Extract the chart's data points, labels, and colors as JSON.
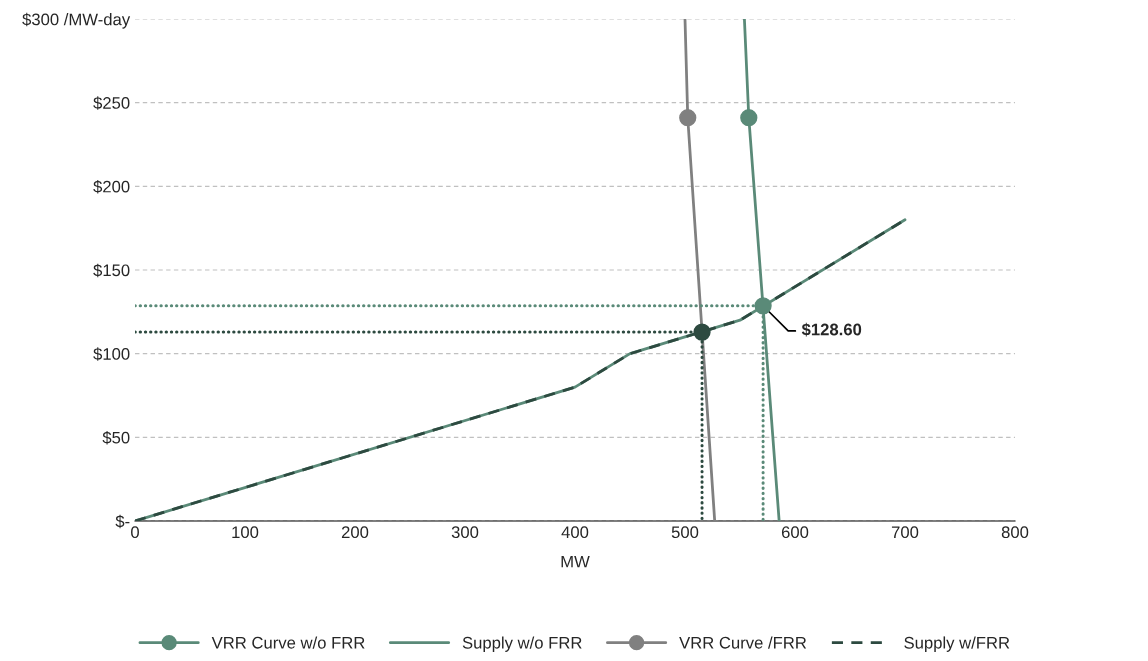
{
  "chart_data": {
    "type": "line",
    "xlabel": "MW",
    "xlim": [
      0,
      800
    ],
    "xticks": [
      0,
      100,
      200,
      300,
      400,
      500,
      600,
      700,
      800
    ],
    "ylim": [
      0,
      300
    ],
    "yticks": [
      {
        "value": 0,
        "label": "$-"
      },
      {
        "value": 50,
        "label": "$50"
      },
      {
        "value": 100,
        "label": "$100"
      },
      {
        "value": 150,
        "label": "$150"
      },
      {
        "value": 200,
        "label": "$200"
      },
      {
        "value": 250,
        "label": "$250"
      },
      {
        "value": 300,
        "label": "$300 /MW-day"
      }
    ],
    "grid": "y",
    "legend": "bottom",
    "series": [
      {
        "color": "#5a8a78",
        "x": [
          554,
          558,
          585.6
        ],
        "values": [
          300,
          241,
          0
        ],
        "marker": "none",
        "line_style": "solid"
      },
      {
        "type": "scatter",
        "name": "VRR Curve w/o FRR",
        "color": "#5a8a78",
        "x": [
          558
        ],
        "values": [
          241
        ],
        "marker": "circle"
      },
      {
        "name": "Supply w/o FRR",
        "color": "#5a8a78",
        "x": [
          0,
          400,
          450,
          550,
          700
        ],
        "values": [
          0,
          80,
          100,
          120,
          180
        ],
        "marker": "none",
        "line_style": "solid"
      },
      {
        "color": "#808080",
        "x": [
          500,
          502.5,
          527
        ],
        "values": [
          300,
          241,
          0
        ],
        "marker": "none",
        "line_style": "solid"
      },
      {
        "type": "scatter",
        "name": "VRR Curve /FRR",
        "color": "#808080",
        "x": [
          502.5
        ],
        "values": [
          241
        ],
        "marker": "circle"
      },
      {
        "name": "Supply w/FRR",
        "color": "#2d4a40",
        "x": [
          0,
          400,
          450,
          550,
          700
        ],
        "values": [
          0,
          80,
          100,
          120,
          180
        ],
        "marker": "none",
        "line_style": "dashed"
      },
      {
        "color": "#5a8a78",
        "x": [
          0,
          571,
          571
        ],
        "values": [
          128.6,
          128.6,
          0
        ],
        "marker": "none",
        "line_style": "dotted"
      },
      {
        "color": "#2d4a40",
        "x": [
          0,
          515.5,
          515.5
        ],
        "values": [
          112.9,
          112.9,
          0
        ],
        "marker": "none",
        "line_style": "dotted"
      },
      {
        "type": "scatter",
        "color": "#5a8a78",
        "x": [
          571
        ],
        "values": [
          128.6
        ],
        "marker": "circle"
      },
      {
        "type": "scatter",
        "color": "#2d4a40",
        "x": [
          515.5
        ],
        "values": [
          112.9
        ],
        "marker": "circle"
      }
    ],
    "annotations": [
      {
        "text": "$128.60",
        "x": 571,
        "y": 128.6
      }
    ]
  }
}
